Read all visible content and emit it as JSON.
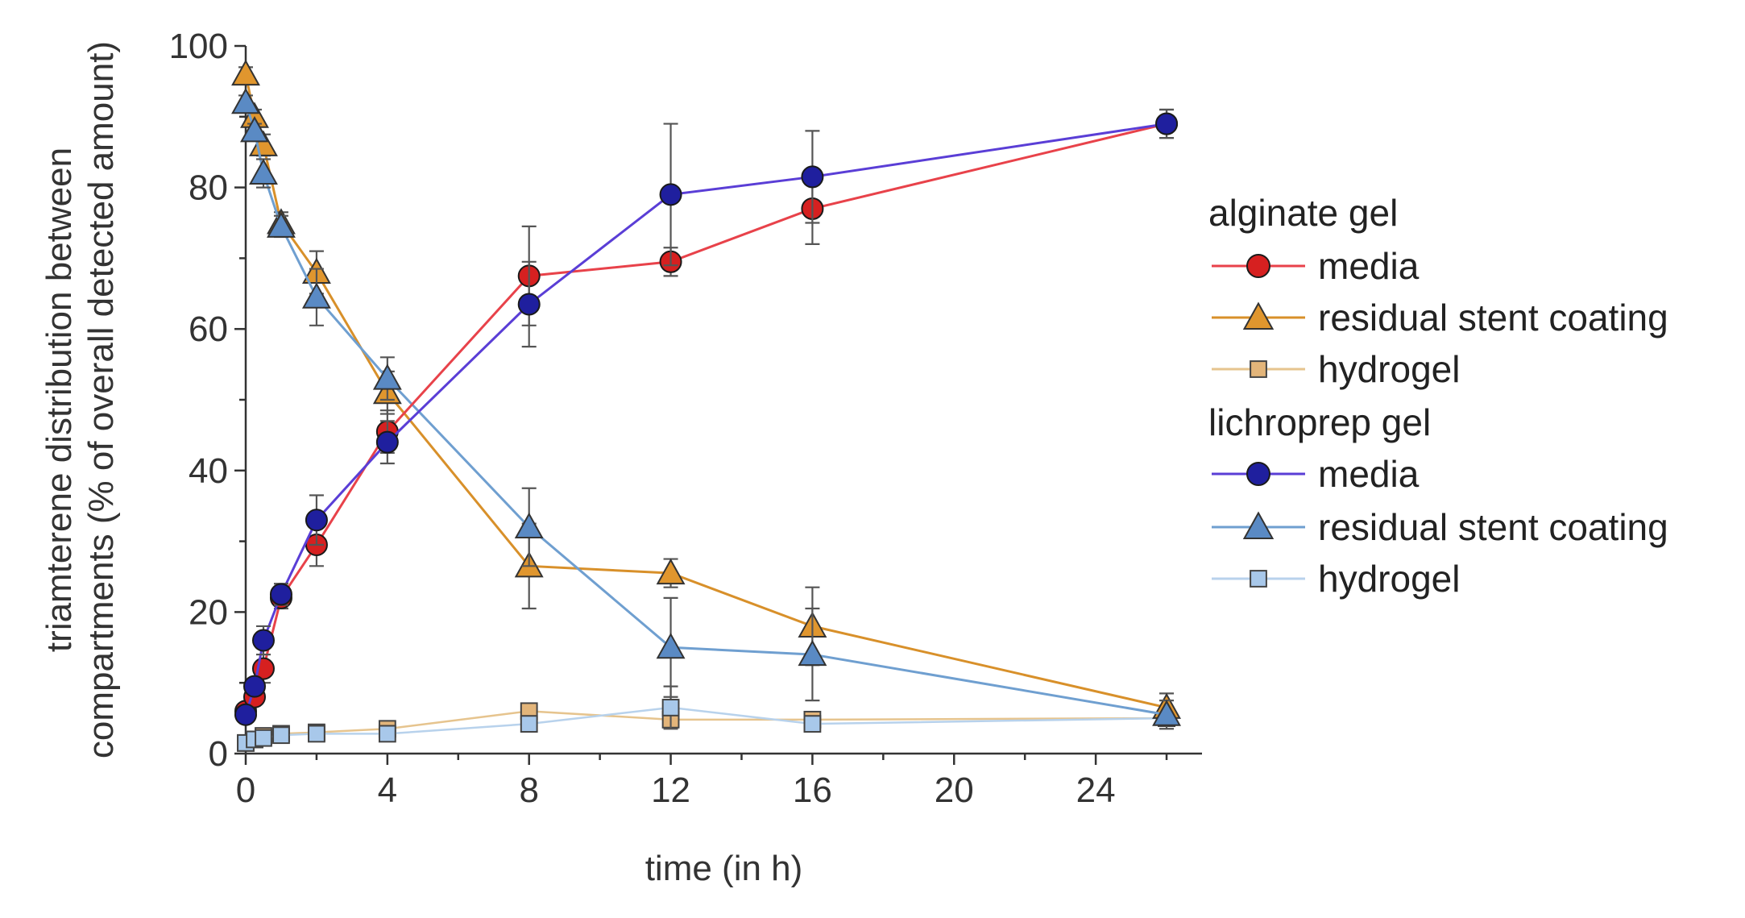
{
  "chart_data": {
    "type": "line",
    "xlabel": "time (in h)",
    "ylabel_line1": "triamterene distribution between",
    "ylabel_line2": "compartments (% of overall detected amount)",
    "xlim": [
      0,
      27
    ],
    "ylim": [
      0,
      100
    ],
    "x_ticks": [
      0,
      4,
      8,
      12,
      16,
      20,
      24
    ],
    "x_tick_labels": [
      "0",
      "4",
      "8",
      "12",
      "16",
      "20",
      "24"
    ],
    "y_ticks": [
      0,
      20,
      40,
      60,
      80,
      100
    ],
    "y_tick_labels": [
      "0",
      "20",
      "40",
      "60",
      "80",
      "100"
    ],
    "legend": {
      "group1": "alginate gel",
      "group2": "lichroprep gel",
      "entries": [
        {
          "label": "media",
          "group": 1
        },
        {
          "label": "residual stent coating",
          "group": 1
        },
        {
          "label": "hydrogel",
          "group": 1
        },
        {
          "label": "media",
          "group": 2
        },
        {
          "label": "residual stent coating",
          "group": 2
        },
        {
          "label": "hydrogel",
          "group": 2
        }
      ]
    },
    "series": [
      {
        "name": "alginate gel - media",
        "marker": "circle",
        "line_color": "#e8424a",
        "fill_color": "#d62020",
        "x": [
          0,
          0.25,
          0.5,
          1,
          2,
          4,
          8,
          12,
          16,
          26
        ],
        "y": [
          6,
          8,
          12,
          22,
          29.5,
          45.5,
          67.5,
          69.5,
          77,
          89
        ],
        "err": [
          1,
          1,
          2,
          1.5,
          3,
          3,
          7,
          2,
          5,
          2
        ]
      },
      {
        "name": "alginate gel - residual stent coating",
        "marker": "triangle",
        "line_color": "#d8902a",
        "fill_color": "#e0962e",
        "x": [
          0,
          0.25,
          0.5,
          1,
          2,
          4,
          8,
          12,
          16,
          26
        ],
        "y": [
          96,
          90,
          86,
          75,
          68,
          51,
          26.5,
          25.5,
          18,
          6.5
        ],
        "err": [
          1,
          1,
          1.5,
          1.5,
          3,
          3,
          6,
          2,
          5.5,
          2
        ]
      },
      {
        "name": "alginate gel - hydrogel",
        "marker": "square",
        "line_color": "#e6c48e",
        "fill_color": "#e3b57a",
        "x": [
          0,
          0.25,
          0.5,
          1,
          2,
          4,
          8,
          12,
          16,
          26
        ],
        "y": [
          1.5,
          2,
          2.5,
          2.8,
          3,
          3.5,
          6,
          4.8,
          4.8,
          5
        ],
        "err": [
          0.5,
          0.5,
          0.5,
          0.5,
          0.5,
          0.8,
          1,
          1,
          0.8,
          0.8
        ]
      },
      {
        "name": "lichroprep gel - media",
        "marker": "circle",
        "line_color": "#5a3ed6",
        "fill_color": "#1f1f9e",
        "x": [
          0,
          0.25,
          0.5,
          1,
          2,
          4,
          8,
          12,
          16,
          26
        ],
        "y": [
          5.5,
          9.5,
          16,
          22.5,
          33,
          44,
          63.5,
          79,
          81.5,
          89
        ],
        "err": [
          1,
          1,
          2,
          1.5,
          3.5,
          3,
          6,
          10,
          6.5,
          2
        ]
      },
      {
        "name": "lichroprep gel - residual stent coating",
        "marker": "triangle",
        "line_color": "#6f9fd0",
        "fill_color": "#5a8ac4",
        "x": [
          0,
          0.25,
          0.5,
          1,
          2,
          4,
          8,
          12,
          16,
          26
        ],
        "y": [
          92,
          88,
          82,
          74.5,
          64.5,
          53,
          32,
          15,
          14,
          5.5
        ],
        "err": [
          1,
          1,
          2,
          1.5,
          4,
          3,
          5.5,
          7,
          6.5,
          2
        ]
      },
      {
        "name": "lichroprep gel - hydrogel",
        "marker": "square",
        "line_color": "#b8d2ec",
        "fill_color": "#a8c8ea",
        "x": [
          0,
          0.25,
          0.5,
          1,
          2,
          4,
          8,
          12,
          16,
          26
        ],
        "y": [
          1.5,
          2,
          2.2,
          2.6,
          2.8,
          2.8,
          4.2,
          6.5,
          4.2,
          5
        ],
        "err": [
          0.5,
          0.5,
          0.5,
          0.5,
          0.5,
          0.6,
          1,
          3,
          0.8,
          0.8
        ]
      }
    ]
  }
}
